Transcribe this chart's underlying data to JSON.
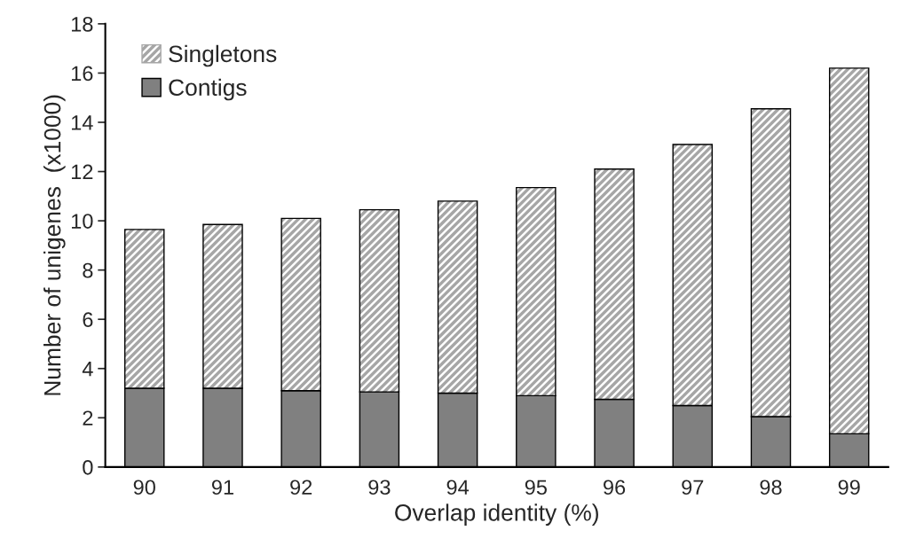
{
  "chart_data": {
    "type": "bar",
    "stacked": true,
    "xlabel": "Overlap identity (%)",
    "ylabel": "Number of unigenes  (x1000)",
    "categories": [
      "90",
      "91",
      "92",
      "93",
      "94",
      "95",
      "96",
      "97",
      "98",
      "99"
    ],
    "series": [
      {
        "name": "Contigs",
        "color": "#808080",
        "values": [
          3.2,
          3.2,
          3.1,
          3.05,
          3.0,
          2.9,
          2.75,
          2.5,
          2.05,
          1.35
        ]
      },
      {
        "name": "Singletons",
        "color": "#a6a6a6",
        "values": [
          6.45,
          6.65,
          7.0,
          7.4,
          7.8,
          8.45,
          9.35,
          10.6,
          12.5,
          14.85
        ]
      }
    ],
    "ylim": [
      0,
      18
    ],
    "yticks": [
      0,
      2,
      4,
      6,
      8,
      10,
      12,
      14,
      16,
      18
    ],
    "grid": false,
    "legend": "top left"
  }
}
